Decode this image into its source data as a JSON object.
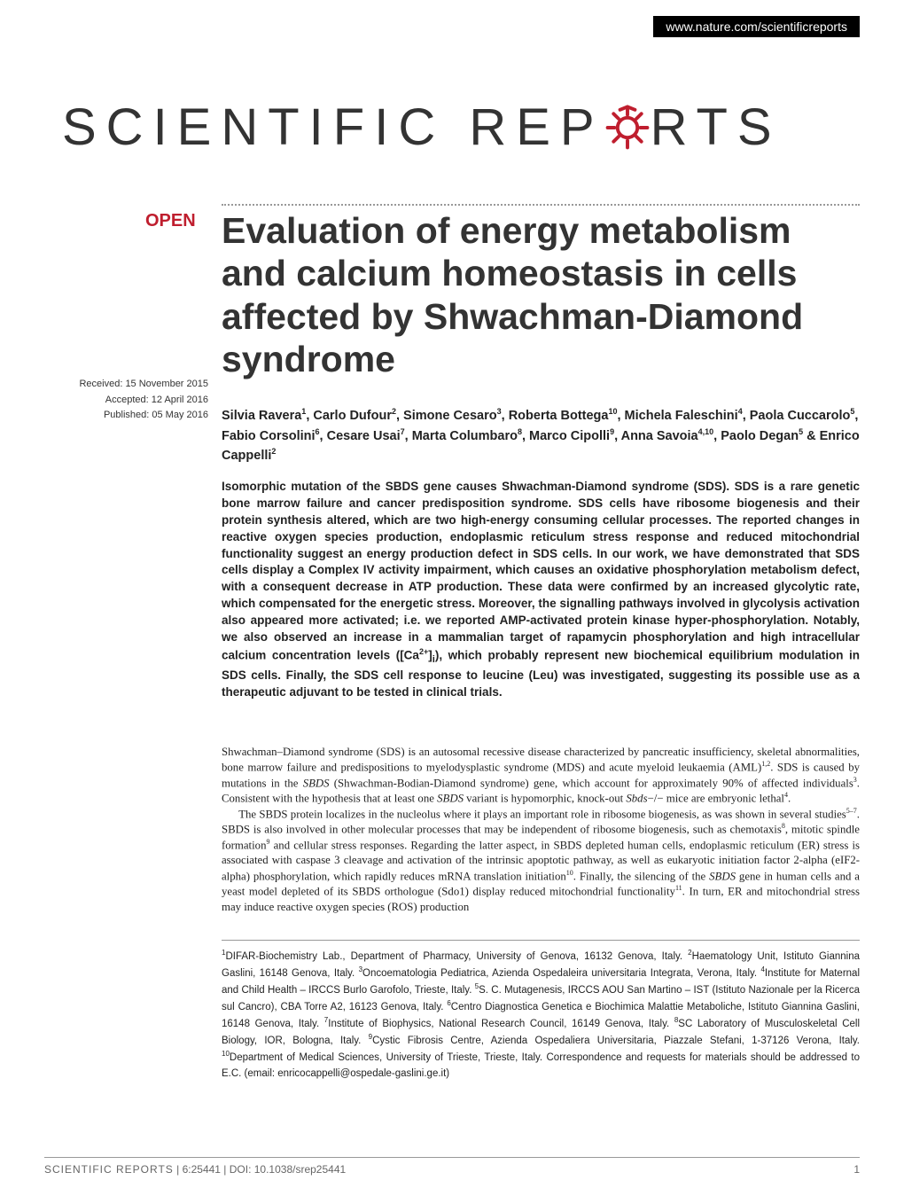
{
  "header": {
    "url": "www.nature.com/scientificreports"
  },
  "journal_logo": {
    "text_before": "SCIENTIFIC",
    "text_mid1": "REP",
    "text_mid2": "RTS",
    "gear_color": "#bf1e2e",
    "font_size": 58,
    "letter_spacing": 11,
    "color": "#333333"
  },
  "open_badge": {
    "text": "OPEN",
    "color": "#bf1e2e",
    "font_size": 20
  },
  "title": {
    "text": "Evaluation of energy metabolism and calcium homeostasis in cells affected by Shwachman-Diamond syndrome",
    "font_size": 41,
    "color": "#333333"
  },
  "dates": {
    "received": "Received: 15 November 2015",
    "accepted": "Accepted: 12 April 2016",
    "published": "Published: 05 May 2016",
    "font_size": 11
  },
  "authors": {
    "html": "Silvia Ravera<sup>1</sup>, Carlo Dufour<sup>2</sup>, Simone Cesaro<sup>3</sup>, Roberta Bottega<sup>10</sup>, Michela Faleschini<sup>4</sup>, Paola Cuccarolo<sup>5</sup>, Fabio Corsolini<sup>6</sup>, Cesare Usai<sup>7</sup>, Marta Columbaro<sup>8</sup>, Marco Cipolli<sup>9</sup>, Anna Savoia<sup>4,10</sup>, Paolo Degan<sup>5</sup> & Enrico Cappelli<sup>2</sup>",
    "font_size": 14.5
  },
  "abstract": {
    "text": "Isomorphic mutation of the SBDS gene causes Shwachman-Diamond syndrome (SDS). SDS is a rare genetic bone marrow failure and cancer predisposition syndrome. SDS cells have ribosome biogenesis and their protein synthesis altered, which are two high-energy consuming cellular processes. The reported changes in reactive oxygen species production, endoplasmic reticulum stress response and reduced mitochondrial functionality suggest an energy production defect in SDS cells. In our work, we have demonstrated that SDS cells display a Complex IV activity impairment, which causes an oxidative phosphorylation metabolism defect, with a consequent decrease in ATP production. These data were confirmed by an increased glycolytic rate, which compensated for the energetic stress. Moreover, the signalling pathways involved in glycolysis activation also appeared more activated; i.e. we reported AMP-activated protein kinase hyper-phosphorylation. Notably, we also observed an increase in a mammalian target of rapamycin phosphorylation and high intracellular calcium concentration levels ([Ca<sup>2+</sup>]<sub>i</sub>), which probably represent new biochemical equilibrium modulation in SDS cells. Finally, the SDS cell response to leucine (Leu) was investigated, suggesting its possible use as a therapeutic adjuvant to be tested in clinical trials.",
    "font_size": 13.5
  },
  "body": {
    "para1": "Shwachman–Diamond syndrome (SDS) is an autosomal recessive disease characterized by pancreatic insufficiency, skeletal abnormalities, bone marrow failure and predispositions to myelodysplastic syndrome (MDS) and acute myeloid leukaemia (AML)<sup>1,2</sup>. SDS is caused by mutations in the <em>SBDS</em> (Shwachman-Bodian-Diamond syndrome) gene, which account for approximately 90% of affected individuals<sup>3</sup>. Consistent with the hypothesis that at least one <em>SBDS</em> variant is hypomorphic, knock-out <em>Sbds</em>−/− mice are embryonic lethal<sup>4</sup>.",
    "para2": "The SBDS protein localizes in the nucleolus where it plays an important role in ribosome biogenesis, as was shown in several studies<sup>5–7</sup>. SBDS is also involved in other molecular processes that may be independent of ribosome biogenesis, such as chemotaxis<sup>8</sup>, mitotic spindle formation<sup>9</sup> and cellular stress responses. Regarding the latter aspect, in SBDS depleted human cells, endoplasmic reticulum (ER) stress is associated with caspase 3 cleavage and activation of the intrinsic apoptotic pathway, as well as eukaryotic initiation factor 2-alpha (eIF2-alpha) phosphorylation, which rapidly reduces mRNA translation initiation<sup>10</sup>. Finally, the silencing of the <em>SBDS</em> gene in human cells and a yeast model depleted of its SBDS orthologue (Sdo1) display reduced mitochondrial functionality<sup>11</sup>. In turn, ER and mitochondrial stress may induce reactive oxygen species (ROS) production",
    "font_size": 12.8
  },
  "affiliations": {
    "html": "<sup>1</sup>DIFAR-Biochemistry Lab., Department of Pharmacy, University of Genova, 16132 Genova, Italy. <sup>2</sup>Haematology Unit, Istituto Giannina Gaslini, 16148 Genova, Italy. <sup>3</sup>Oncoematologia Pediatrica, Azienda Ospedaleira universitaria Integrata, Verona, Italy. <sup>4</sup>Institute for Maternal and Child Health – IRCCS Burlo Garofolo, Trieste, Italy. <sup>5</sup>S. C. Mutagenesis, IRCCS AOU San Martino – IST (Istituto Nazionale per la Ricerca sul Cancro), CBA Torre A2, 16123 Genova, Italy. <sup>6</sup>Centro Diagnostica Genetica e Biochimica Malattie Metaboliche, Istituto Giannina Gaslini, 16148 Genova, Italy. <sup>7</sup>Institute of Biophysics, National Research Council, 16149 Genova, Italy. <sup>8</sup>SC Laboratory of Musculoskeletal Cell Biology, IOR, Bologna, Italy. <sup>9</sup>Cystic Fibrosis Centre, Azienda Ospedaliera Universitaria, Piazzale Stefani, 1-37126 Verona, Italy. <sup>10</sup>Department of Medical Sciences, University of Trieste, Trieste, Italy. Correspondence and requests for materials should be addressed to E.C. (email: enricocappelli@ospedale-gaslini.ge.it)",
    "font_size": 11.5
  },
  "footer": {
    "journal": "SCIENTIFIC REPORTS",
    "citation": " | 6:25441 | DOI: 10.1038/srep25441",
    "page": "1",
    "color": "#666666"
  },
  "colors": {
    "accent_red": "#bf1e2e",
    "text_dark": "#222222",
    "text_gray": "#666666",
    "divider": "#999999",
    "background": "#ffffff"
  }
}
